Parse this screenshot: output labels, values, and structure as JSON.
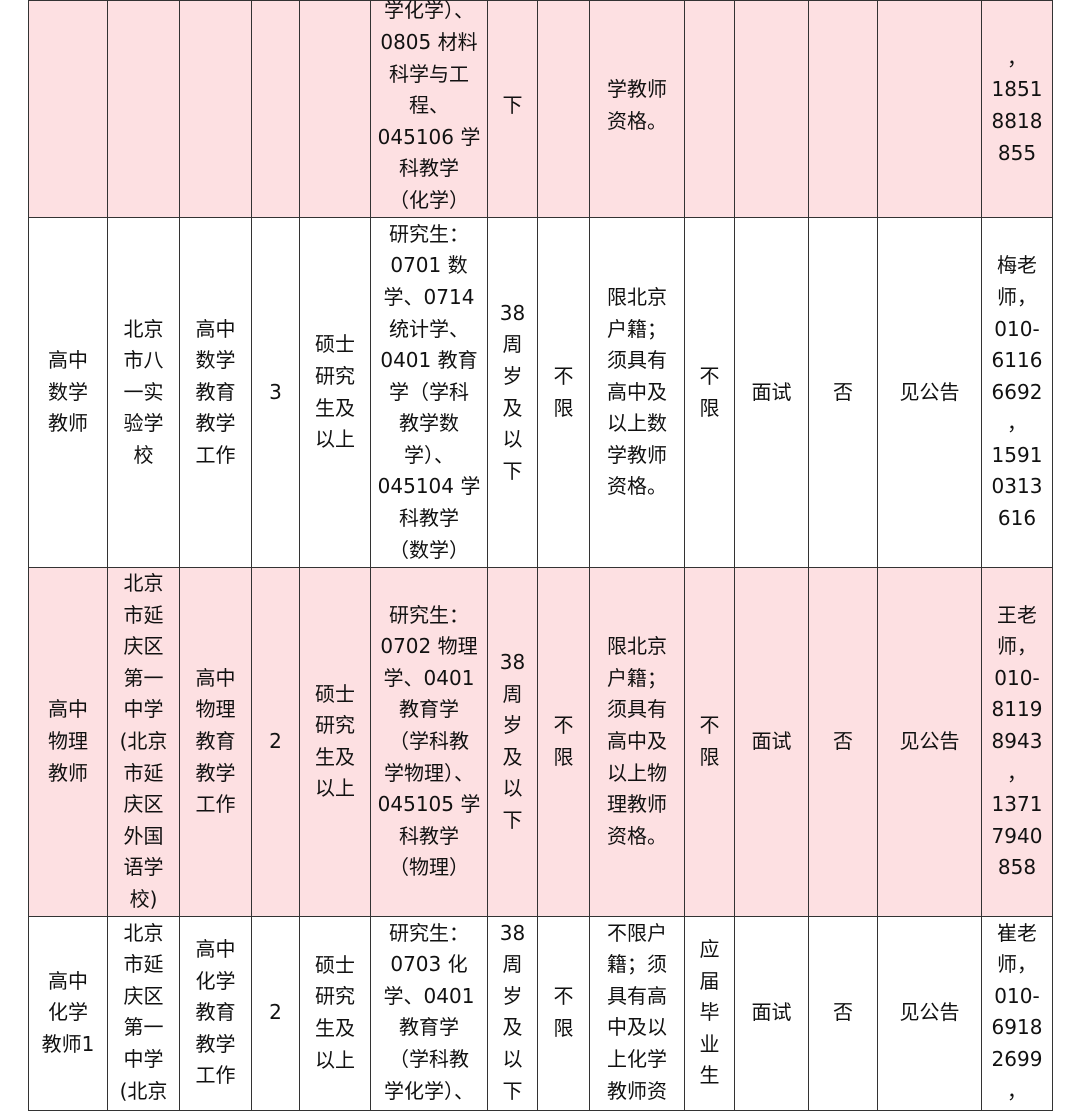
{
  "colors": {
    "pink_row": "#fde0e2",
    "border": "#333333"
  },
  "rows": [
    {
      "style": "pink",
      "cells": [
        "",
        "",
        "",
        "",
        "",
        "学化学）、\n0805 材料\n科学与工\n程、\n045106 学\n科教学\n（化学）",
        "下",
        "",
        "学教师\n资格。",
        "",
        "",
        "",
        "",
        "，\n1851\n8818\n855"
      ]
    },
    {
      "style": "white",
      "cells": [
        "高中\n数学\n教师",
        "北京\n市八\n一实\n验学\n校",
        "高中\n数学\n教育\n教学\n工作",
        "3",
        "硕士\n研究\n生及\n以上",
        "研究生：\n0701 数\n学、0714\n统计学、\n0401 教育\n学（学科\n教学数\n学）、\n045104 学\n科教学\n（数学）",
        "38\n周\n岁\n及\n以\n下",
        "不\n限",
        "限北京\n户籍；\n须具有\n高中及\n以上数\n学教师\n资格。",
        "不\n限",
        "面试",
        "否",
        "见公告",
        "梅老\n师，\n010-\n6116\n6692\n，\n1591\n0313\n616"
      ]
    },
    {
      "style": "pink",
      "cells": [
        "高中\n物理\n教师",
        "北京\n市延\n庆区\n第一\n中学\n(北京\n市延\n庆区\n外国\n语学\n校)",
        "高中\n物理\n教育\n教学\n工作",
        "2",
        "硕士\n研究\n生及\n以上",
        "研究生：\n0702 物理\n学、0401\n教育学\n（学科教\n学物理）、\n045105 学\n科教学\n（物理）",
        "38\n周\n岁\n及\n以\n下",
        "不\n限",
        "限北京\n户籍；\n须具有\n高中及\n以上物\n理教师\n资格。",
        "不\n限",
        "面试",
        "否",
        "见公告",
        "王老\n师，\n010-\n8119\n8943\n，\n1371\n7940\n858"
      ]
    },
    {
      "style": "white",
      "cells": [
        "高中\n化学\n教师1",
        "北京\n市延\n庆区\n第一\n中学\n(北京",
        "高中\n化学\n教育\n教学\n工作",
        "2",
        "硕士\n研究\n生及\n以上",
        "研究生：\n0703 化\n学、0401\n教育学\n（学科教\n学化学）、",
        "38\n周\n岁\n及\n以\n下",
        "不\n限",
        "不限户\n籍；须\n具有高\n中及以\n上化学\n教师资",
        "应\n届\n毕\n业\n生",
        "面试",
        "否",
        "见公告",
        "崔老\n师，\n010-\n6918\n2699\n，"
      ]
    }
  ]
}
